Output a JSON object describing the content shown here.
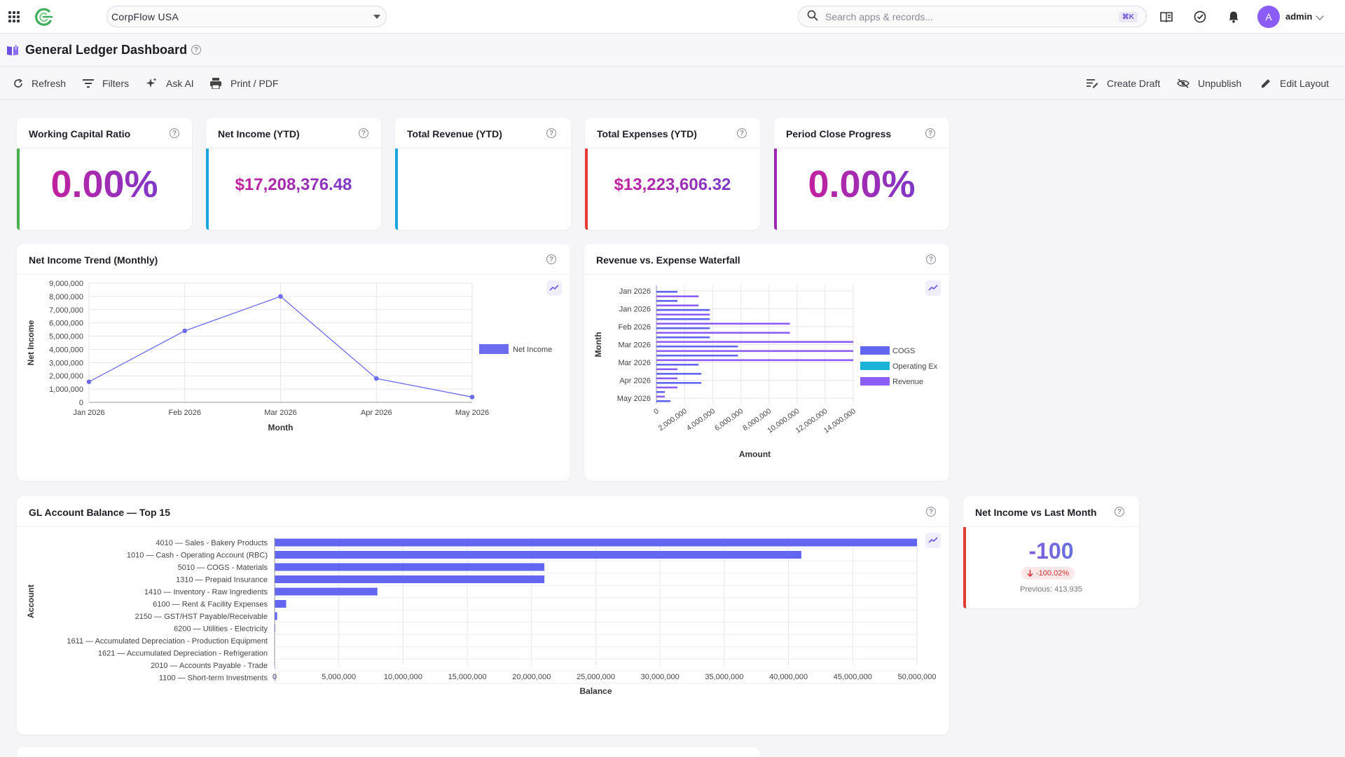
{
  "topbar": {
    "company": "CorpFlow USA",
    "search_placeholder": "Search apps & records...",
    "shortcut": "⌘K",
    "avatar_initial": "A",
    "user": "admin"
  },
  "page": {
    "title": "General Ledger Dashboard"
  },
  "toolbar": {
    "refresh": "Refresh",
    "filters": "Filters",
    "ask_ai": "Ask AI",
    "print": "Print / PDF",
    "create_draft": "Create Draft",
    "unpublish": "Unpublish",
    "edit_layout": "Edit Layout"
  },
  "kpis": [
    {
      "title": "Working Capital Ratio",
      "value": "0.00%",
      "color": "#4caf50"
    },
    {
      "title": "Net Income (YTD)",
      "value": "$17,208,376.48",
      "color": "#1aa7e0"
    },
    {
      "title": "Total Revenue (YTD)",
      "value": "",
      "color": "#1aa7e0"
    },
    {
      "title": "Total Expenses (YTD)",
      "value": "$13,223,606.32",
      "color": "#e53935"
    },
    {
      "title": "Period Close Progress",
      "value": "0.00%",
      "color": "#9c27b0"
    }
  ],
  "comparison": {
    "title": "Net Income vs Last Month",
    "value": "-100",
    "change": "-100.02%",
    "previous": "Previous: 413,935",
    "color": "#e53935"
  },
  "charts": {
    "trend_title": "Net Income Trend (Monthly)",
    "waterfall_title": "Revenue vs. Expense Waterfall",
    "balance_title": "GL Account Balance — Top 15"
  },
  "chart_data": [
    {
      "type": "line",
      "title": "Net Income Trend (Monthly)",
      "categories": [
        "Jan 2026",
        "Feb 2026",
        "Mar 2026",
        "Apr 2026",
        "May 2026"
      ],
      "series": [
        {
          "name": "Net Income",
          "values": [
            1550000,
            5400000,
            8000000,
            1800000,
            400000
          ]
        }
      ],
      "xlabel": "Month",
      "ylabel": "Net Income",
      "ylim": [
        0,
        9000000
      ],
      "yticks": [
        "0",
        "1,000,000",
        "2,000,000",
        "3,000,000",
        "4,000,000",
        "5,000,000",
        "6,000,000",
        "7,000,000",
        "8,000,000",
        "9,000,000"
      ],
      "legend": "right",
      "grid": true,
      "color": "#6c6cf0"
    },
    {
      "type": "bar",
      "orientation": "horizontal",
      "title": "Revenue vs. Expense Waterfall",
      "categories": [
        "Jan 2026",
        "Jan 2026",
        "Feb 2026",
        "Mar 2026",
        "Mar 2026",
        "Apr 2026",
        "May 2026"
      ],
      "series": [
        {
          "name": "COGS",
          "color": "#6366f1"
        },
        {
          "name": "Operating Ex",
          "color": "#19b4d8"
        },
        {
          "name": "Revenue",
          "color": "#8b5cf6"
        }
      ],
      "bar_values": [
        0,
        1500000,
        3000000,
        1500000,
        3000000,
        3800000,
        3800000,
        3800000,
        9500000,
        3800000,
        9500000,
        3800000,
        14000000,
        5800000,
        14000000,
        5800000,
        14000000,
        3000000,
        1500000,
        3200000,
        1500000,
        3200000,
        1500000,
        600000,
        600000,
        1000000
      ],
      "bar_colors": [
        "#8b5cf6",
        "#6366f1"
      ],
      "xlabel": "Amount",
      "ylabel": "Month",
      "xlim": [
        0,
        14000000
      ],
      "xticks": [
        "0",
        "2,000,000",
        "4,000,000",
        "6,000,000",
        "8,000,000",
        "10,000,000",
        "12,000,000",
        "14,000,000"
      ],
      "legend": "right",
      "grid": true
    },
    {
      "type": "bar",
      "orientation": "horizontal",
      "title": "GL Account Balance — Top 15",
      "categories": [
        "4010 — Sales - Bakery Products",
        "1010 — Cash - Operating Account (RBC)",
        "5010 — COGS - Materials",
        "1310 — Prepaid Insurance",
        "1410 — Inventory - Raw Ingredients",
        "6100 — Rent & Facility Expenses",
        "2150 — GST/HST Payable/Receivable",
        "6200 — Utilities - Electricity",
        "1611 — Accumulated Depreciation - Production Equipment",
        "1621 — Accumulated Depreciation - Refrigeration",
        "2010 — Accounts Payable - Trade",
        "1100 — Short-term Investments"
      ],
      "values": [
        50000000,
        41000000,
        21000000,
        21000000,
        8000000,
        900000,
        200000,
        50000,
        20000,
        10000,
        5000,
        1000
      ],
      "xlabel": "Balance",
      "ylabel": "Account",
      "xlim": [
        0,
        50000000
      ],
      "xticks": [
        "0",
        "5,000,000",
        "10,000,000",
        "15,000,000",
        "20,000,000",
        "25,000,000",
        "30,000,000",
        "35,000,000",
        "40,000,000",
        "45,000,000",
        "50,000,000"
      ],
      "grid": true,
      "color": "#6366f1"
    }
  ]
}
